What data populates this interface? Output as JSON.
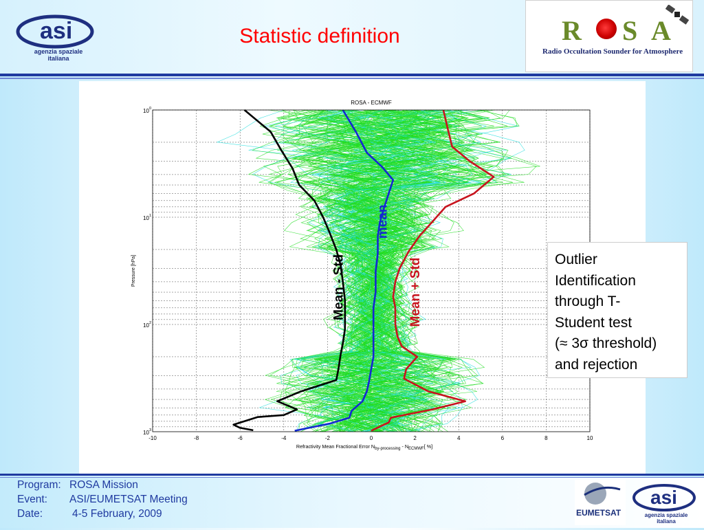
{
  "slide": {
    "title": "Statistic definition",
    "logo_left": {
      "name": "asi-logo",
      "line1": "agenzia spaziale",
      "line2": "italiana"
    },
    "logo_right": {
      "name": "rosa-logo",
      "brand_left": "R",
      "brand_right": "S A",
      "subtitle": "Radio Occultation Sounder for Atmosphere"
    },
    "outlier_note": {
      "lines": [
        "Outlier",
        "Identification",
        "through T-",
        "Student test",
        "(≈ 3σ threshold)",
        "and rejection"
      ]
    },
    "footer": {
      "program_label": "Program:",
      "program_value": "ROSA Mission",
      "event_label": "Event:",
      "event_value": "ASI/EUMETSAT Meeting",
      "date_label": "Date:",
      "date_value": "4-5 February, 2009",
      "logo_eumetsat": "EUMETSAT",
      "logo_asi_line1": "agenzia spaziale",
      "logo_asi_line2": "italiana"
    },
    "colors": {
      "title": "#ff0000",
      "footer_text": "#1f3aa0",
      "rule": "#1f3aa0"
    }
  },
  "chart_data": {
    "type": "line",
    "title": "ROSA - ECMWF",
    "xlabel": "Refractivity Mean Fractional Error N",
    "xlabel_sub1": "by-processing",
    "xlabel_mid": " - N",
    "xlabel_sub2": "ECMWF",
    "xlabel_end": "[ %]",
    "ylabel": "Pressure [hPa]",
    "xlim": [
      -10,
      10
    ],
    "ylim": [
      1,
      1000
    ],
    "y_scale": "log",
    "y_reversed": true,
    "grid": true,
    "x_ticks": [
      -10,
      -8,
      -6,
      -4,
      -2,
      0,
      2,
      4,
      6,
      8,
      10
    ],
    "y_ticks": [
      {
        "base": "10",
        "exp": "0",
        "value": 1
      },
      {
        "base": "10",
        "exp": "1",
        "value": 10
      },
      {
        "base": "10",
        "exp": "2",
        "value": 100
      },
      {
        "base": "10",
        "exp": "3",
        "value": 1000
      }
    ],
    "series": [
      {
        "name": "Mean - Std",
        "color": "#000000",
        "points": [
          [
            -5.8,
            1
          ],
          [
            -4.6,
            1.6
          ],
          [
            -4.1,
            2.4
          ],
          [
            -3.6,
            3.5
          ],
          [
            -3.3,
            5
          ],
          [
            -2.6,
            7
          ],
          [
            -2.2,
            10
          ],
          [
            -1.9,
            14
          ],
          [
            -1.6,
            20
          ],
          [
            -1.4,
            28
          ],
          [
            -1.3,
            40
          ],
          [
            -1.2,
            60
          ],
          [
            -1.2,
            80
          ],
          [
            -1.2,
            110
          ],
          [
            -1.3,
            150
          ],
          [
            -1.4,
            190
          ],
          [
            -1.5,
            260
          ],
          [
            -1.6,
            330
          ],
          [
            -3.2,
            420
          ],
          [
            -4.3,
            520
          ],
          [
            -3.4,
            620
          ],
          [
            -4.0,
            700
          ],
          [
            -5.2,
            730
          ],
          [
            -6.3,
            860
          ],
          [
            -6.0,
            920
          ],
          [
            -5.4,
            970
          ]
        ]
      },
      {
        "name": "mean",
        "color": "#1428d2",
        "points": [
          [
            -1.3,
            1
          ],
          [
            -0.7,
            1.6
          ],
          [
            -0.2,
            2.5
          ],
          [
            0.5,
            3.4
          ],
          [
            1.0,
            4.5
          ],
          [
            0.8,
            6
          ],
          [
            0.6,
            8
          ],
          [
            0.4,
            11
          ],
          [
            0.3,
            15
          ],
          [
            0.3,
            22
          ],
          [
            0.2,
            32
          ],
          [
            0.2,
            50
          ],
          [
            0.1,
            70
          ],
          [
            0.1,
            100
          ],
          [
            0.1,
            140
          ],
          [
            0.1,
            200
          ],
          [
            0.0,
            260
          ],
          [
            -0.1,
            340
          ],
          [
            -0.2,
            420
          ],
          [
            -0.4,
            520
          ],
          [
            -0.9,
            640
          ],
          [
            -1.0,
            740
          ],
          [
            -1.9,
            840
          ],
          [
            -3.5,
            980
          ]
        ]
      },
      {
        "name": "Mean + Std",
        "color": "#c8141e",
        "points": [
          [
            3.3,
            1
          ],
          [
            3.5,
            1.5
          ],
          [
            3.7,
            2.2
          ],
          [
            4.5,
            3
          ],
          [
            5.6,
            4.2
          ],
          [
            4.7,
            6
          ],
          [
            3.4,
            8
          ],
          [
            2.8,
            11
          ],
          [
            2.2,
            15
          ],
          [
            1.7,
            21
          ],
          [
            1.3,
            30
          ],
          [
            1.1,
            40
          ],
          [
            1.0,
            55
          ],
          [
            1.1,
            70
          ],
          [
            1.1,
            100
          ],
          [
            1.2,
            130
          ],
          [
            1.4,
            160
          ],
          [
            2.1,
            200
          ],
          [
            1.6,
            260
          ],
          [
            1.5,
            320
          ],
          [
            2.6,
            420
          ],
          [
            4.3,
            520
          ],
          [
            2.8,
            620
          ],
          [
            0.9,
            740
          ],
          [
            0.8,
            820
          ],
          [
            0.0,
            980
          ]
        ]
      }
    ],
    "annotations": [
      {
        "text": "Mean - Std",
        "color": "#000000"
      },
      {
        "text": "mean",
        "color": "#1428d2"
      },
      {
        "text": "Mean + Std",
        "color": "#c8141e"
      }
    ],
    "background_profiles": {
      "colors": [
        "#22dd22",
        "#22dddd"
      ]
    }
  }
}
